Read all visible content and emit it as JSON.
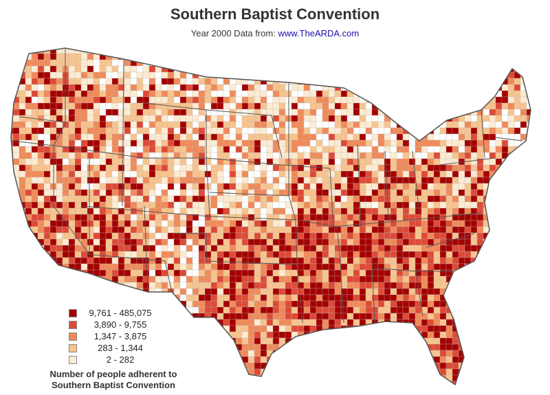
{
  "title": "Southern Baptist Convention",
  "subtitle_prefix": "Year 2000 Data from: ",
  "subtitle_link": "www.TheARDA.com",
  "legend": {
    "items": [
      {
        "label": "9,761 - 485,075",
        "color": "#a50000"
      },
      {
        "label": "3,890 - 9,755",
        "color": "#de4a37"
      },
      {
        "label": "1,347 - 3,875",
        "color": "#f08a5a"
      },
      {
        "label": "283 - 1,344",
        "color": "#f8c48e"
      },
      {
        "label": "2 - 282",
        "color": "#fdebd2"
      }
    ],
    "note_line1": "Number of people adherent to",
    "note_line2": "Southern Baptist Convention"
  },
  "colors": {
    "none": "#ffffff",
    "border": "#555555",
    "county_border": "#bbbbbb"
  }
}
